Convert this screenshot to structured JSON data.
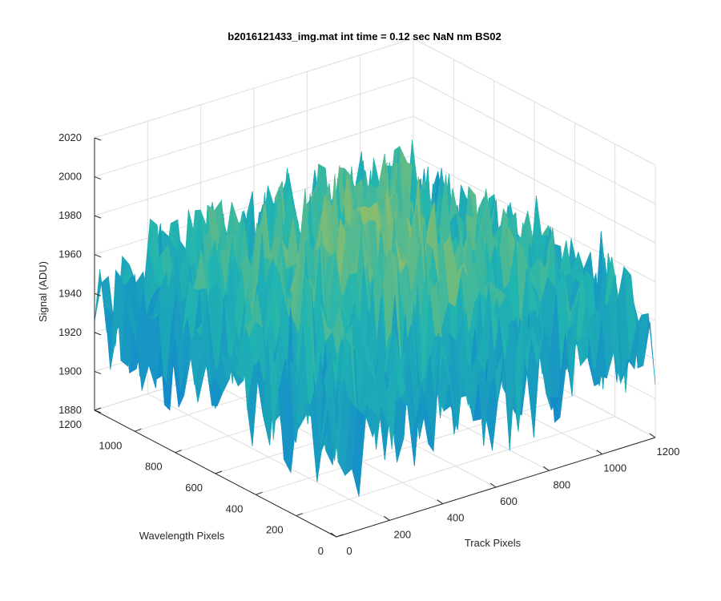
{
  "chart_data": {
    "type": "surface",
    "title": "b2016121433_img.mat int time = 0.12 sec  NaN nm BS02",
    "xlabel": "Track Pixels",
    "ylabel": "Wavelength Pixels",
    "zlabel": "Signal (ADU)",
    "xlim": [
      0,
      1200
    ],
    "ylim": [
      0,
      1200
    ],
    "zlim": [
      1880,
      2020
    ],
    "xticks": [
      "0",
      "200",
      "400",
      "600",
      "800",
      "1000",
      "1200"
    ],
    "yticks": [
      "0",
      "200",
      "400",
      "600",
      "800",
      "1000",
      "1200"
    ],
    "zticks": [
      "1880",
      "1900",
      "1920",
      "1940",
      "1960",
      "1980",
      "2000",
      "2020"
    ],
    "grid": true,
    "colormap": "parula",
    "surface_summary": {
      "edge_level_adu": 1930,
      "center_level_adu": 1968,
      "peak_adu": 2010,
      "min_adu": 1895
    },
    "colors": {
      "low": "#0d74d8",
      "mid": "#21b5b0",
      "high": "#dcc43a"
    }
  }
}
